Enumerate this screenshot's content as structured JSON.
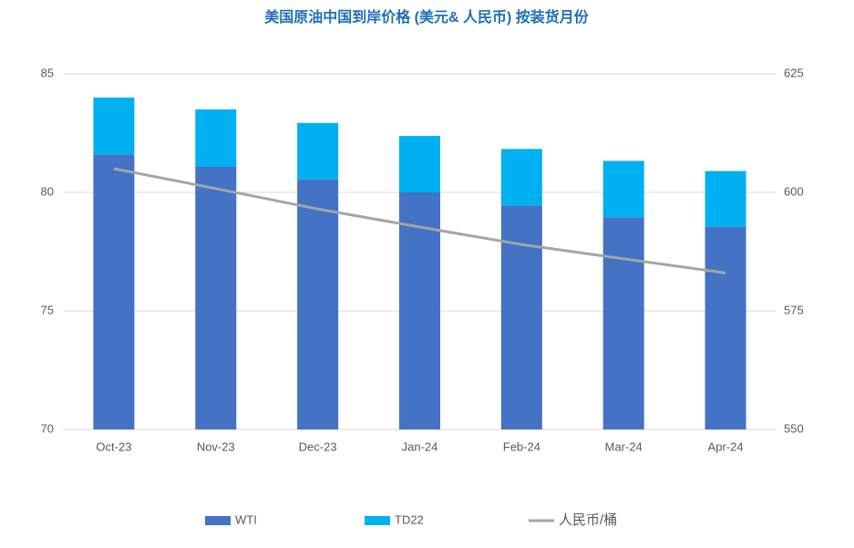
{
  "chart_data": {
    "type": "bar",
    "stacked": true,
    "title": "美国原油中国到岸价格 (美元& 人民币) 按装货月份",
    "categories": [
      "Oct-23",
      "Nov-23",
      "Dec-23",
      "Jan-24",
      "Feb-24",
      "Mar-24",
      "Apr-24"
    ],
    "series": [
      {
        "name": "WTI",
        "type": "bar",
        "color": "#4472c4",
        "values": [
          81.6,
          81.1,
          80.55,
          80.0,
          79.45,
          78.95,
          78.55
        ]
      },
      {
        "name": "TD22",
        "type": "bar",
        "color": "#00b0f0",
        "values": [
          2.4,
          2.4,
          2.38,
          2.38,
          2.38,
          2.38,
          2.35
        ]
      },
      {
        "name": "人民币/桶",
        "type": "line",
        "axis": "y2",
        "color": "#a5a5a5",
        "values": [
          605,
          600.8,
          596.5,
          592.7,
          589,
          586,
          583
        ]
      }
    ],
    "ylim": [
      70,
      85
    ],
    "yticks": [
      70,
      75,
      80,
      85
    ],
    "y2lim": [
      550,
      625
    ],
    "y2ticks": [
      550,
      575,
      600,
      625
    ],
    "grid": true,
    "legend": "bottom"
  }
}
